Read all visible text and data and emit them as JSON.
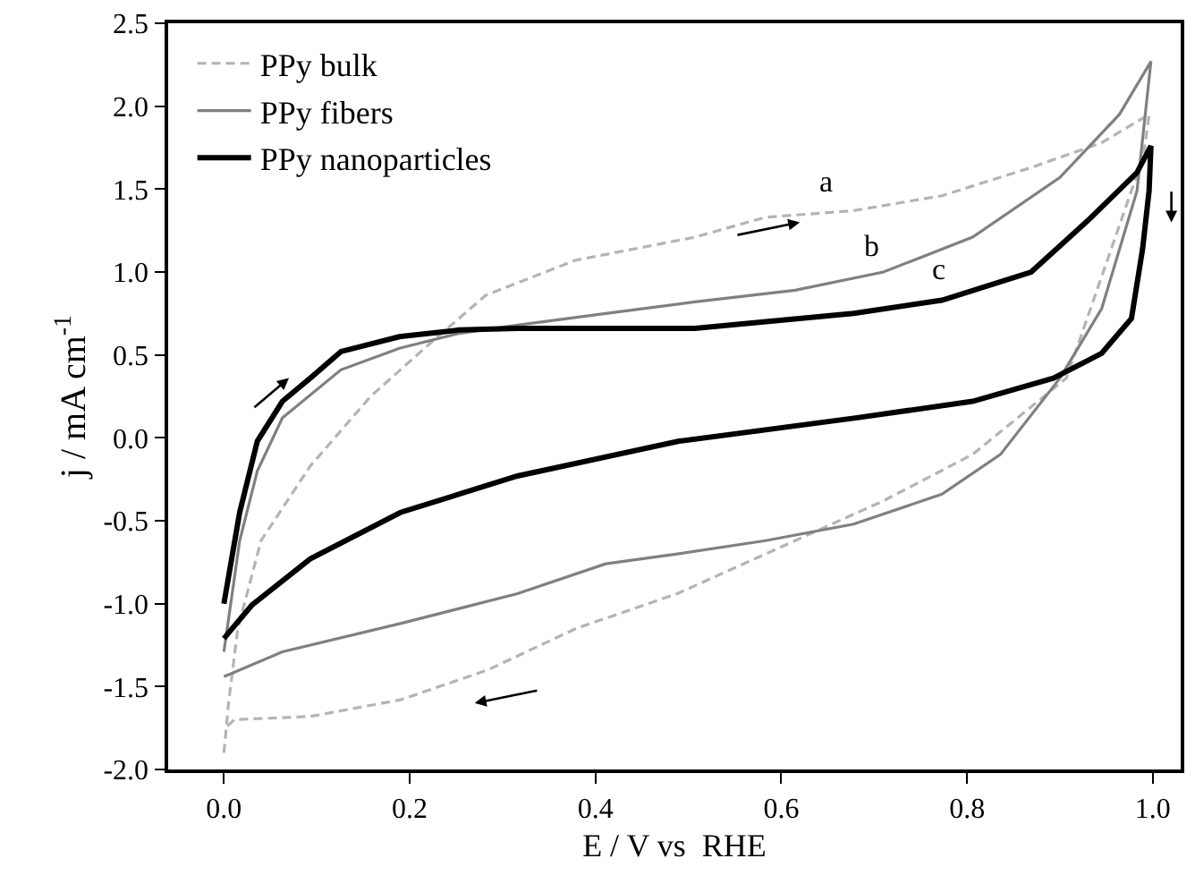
{
  "chart_data": {
    "type": "line",
    "xlabel": "E / V vs  RHE",
    "ylabel": "j / mA cm$^{-1}$",
    "xlim": [
      -0.06,
      1.03
    ],
    "xticks": [
      {
        "value": 0,
        "label": "0.0"
      },
      0.2,
      0.4,
      0.6,
      0.8,
      {
        "value": 1,
        "label": "1.0"
      }
    ],
    "ylim": [
      -2.0,
      2.5
    ],
    "yticks": [
      {
        "value": -2,
        "label": "-2.0"
      },
      -1.5,
      {
        "value": -1,
        "label": "-1.0"
      },
      -0.5,
      {
        "value": 0,
        "label": "0.0"
      },
      0.5,
      {
        "value": 1,
        "label": "1.0"
      },
      1.5,
      {
        "value": 2,
        "label": "2.0"
      },
      2.5
    ],
    "legend": "top left",
    "marker": "none",
    "series": [
      {
        "name": "PPy bulk",
        "color": "#b4b4b4",
        "line_style": "dashed",
        "x": [
          0,
          0.005,
          0.015,
          0.04,
          0.093,
          0.158,
          0.222,
          0.282,
          0.378,
          0.507,
          0.583,
          0.678,
          0.773,
          0.869,
          0.945,
          0.996,
          0.99,
          0.907,
          0.806,
          0.71,
          0.615,
          0.488,
          0.379,
          0.284,
          0.19,
          0.093,
          0.011,
          0
        ],
        "values": [
          -1.9,
          -1.6,
          -1.15,
          -0.62,
          -0.17,
          0.25,
          0.57,
          0.86,
          1.07,
          1.21,
          1.33,
          1.37,
          1.46,
          1.63,
          1.78,
          1.95,
          1.7,
          0.36,
          -0.1,
          -0.38,
          -0.62,
          -0.94,
          -1.15,
          -1.4,
          -1.58,
          -1.68,
          -1.7,
          -1.76
        ]
      },
      {
        "name": "PPy fibers",
        "color": "#808080",
        "line_style": "solid",
        "x": [
          0,
          0.017,
          0.036,
          0.063,
          0.126,
          0.189,
          0.253,
          0.316,
          0.411,
          0.507,
          0.615,
          0.71,
          0.806,
          0.9,
          0.964,
          0.998,
          0.983,
          0.945,
          0.9,
          0.836,
          0.773,
          0.678,
          0.583,
          0.488,
          0.411,
          0.316,
          0.19,
          0.063,
          0
        ],
        "values": [
          -1.29,
          -0.62,
          -0.2,
          0.12,
          0.41,
          0.54,
          0.63,
          0.68,
          0.75,
          0.82,
          0.89,
          1.0,
          1.21,
          1.57,
          1.95,
          2.27,
          1.49,
          0.78,
          0.36,
          -0.1,
          -0.34,
          -0.52,
          -0.62,
          -0.7,
          -0.76,
          -0.94,
          -1.12,
          -1.29,
          -1.44
        ]
      },
      {
        "name": "PPy nanoparticles",
        "color": "#000000",
        "line_style": "solid",
        "x": [
          0,
          0.017,
          0.036,
          0.063,
          0.093,
          0.126,
          0.189,
          0.253,
          0.316,
          0.507,
          0.678,
          0.773,
          0.869,
          0.93,
          0.983,
          0.998,
          0.996,
          0.989,
          0.977,
          0.945,
          0.893,
          0.806,
          0.68,
          0.49,
          0.316,
          0.19,
          0.093,
          0.03,
          0
        ],
        "values": [
          -1.0,
          -0.45,
          -0.02,
          0.22,
          0.36,
          0.52,
          0.61,
          0.65,
          0.66,
          0.66,
          0.75,
          0.83,
          1.0,
          1.31,
          1.6,
          1.76,
          1.49,
          1.14,
          0.72,
          0.51,
          0.36,
          0.22,
          0.12,
          -0.02,
          -0.23,
          -0.45,
          -0.73,
          -1.01,
          -1.21
        ]
      }
    ],
    "annotations": [
      "a",
      "b",
      "c"
    ]
  }
}
